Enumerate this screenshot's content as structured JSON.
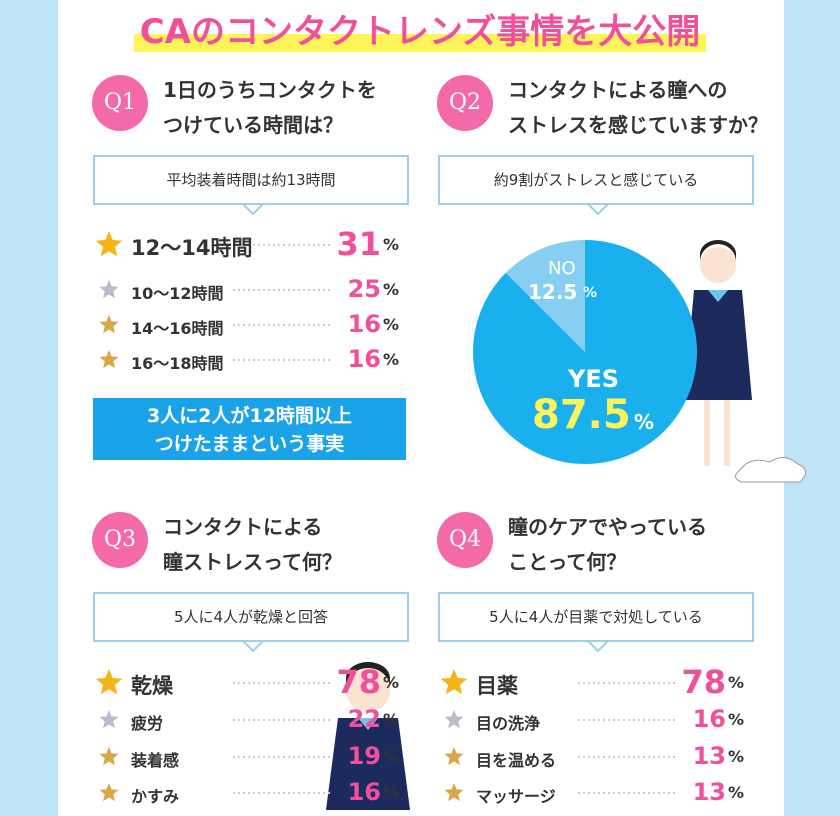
{
  "title": "CAのコンタクトレンズ事情を大公開",
  "sections": [
    {
      "badge": "Q1",
      "question": [
        "1日のうちコンタクトを",
        "つけている時間は？"
      ],
      "answer": "平均装着時間は約13時間",
      "unit": "%",
      "items": [
        {
          "label": "12〜14時間",
          "value": 31
        },
        {
          "label": "10〜12時間",
          "value": 25
        },
        {
          "label": "14〜16時間",
          "value": 16
        },
        {
          "label": "16〜18時間",
          "value": 16
        }
      ],
      "note": [
        "3人に2人が12時間以上",
        "つけたままという事実"
      ]
    },
    {
      "badge": "Q2",
      "question": [
        "コンタクトによる瞳への",
        "ストレスを感じていますか？"
      ],
      "answer": "約9割がストレスと感じている",
      "unit": "%",
      "pie": [
        {
          "label": "NO",
          "value": 12.5
        },
        {
          "label": "YES",
          "value": 87.5
        }
      ]
    },
    {
      "badge": "Q3",
      "question": [
        "コンタクトによる",
        "瞳ストレスって何？"
      ],
      "answer": "5人に4人が乾燥と回答",
      "unit": "%",
      "items": [
        {
          "label": "乾燥",
          "value": 78
        },
        {
          "label": "疲労",
          "value": 22
        },
        {
          "label": "装着感",
          "value": 19
        },
        {
          "label": "かすみ",
          "value": 16
        }
      ]
    },
    {
      "badge": "Q4",
      "question": [
        "瞳のケアでやっている",
        "ことって何？"
      ],
      "answer": "5人に4人が目薬で対処している",
      "unit": "%",
      "items": [
        {
          "label": "目薬",
          "value": 78
        },
        {
          "label": "目の洗浄",
          "value": 16
        },
        {
          "label": "目を温める",
          "value": 13
        },
        {
          "label": "マッサージ",
          "value": 13
        }
      ]
    }
  ]
}
